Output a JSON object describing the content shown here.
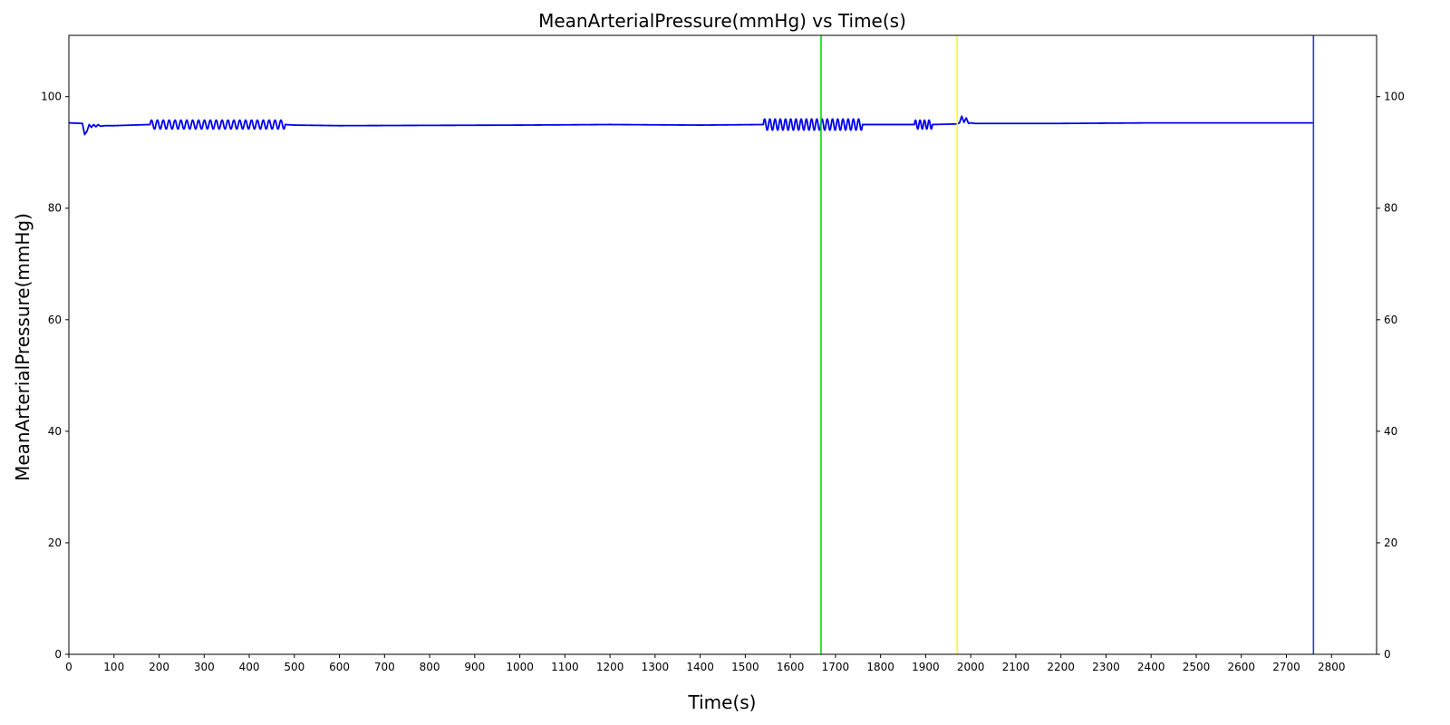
{
  "chart_data": {
    "type": "line",
    "title": "MeanArterialPressure(mmHg) vs Time(s)",
    "xlabel": "Time(s)",
    "ylabel": "MeanArterialPressure(mmHg)",
    "xlim": [
      0,
      2900
    ],
    "ylim": [
      0,
      111
    ],
    "x_ticks": [
      0,
      100,
      200,
      300,
      400,
      500,
      600,
      700,
      800,
      900,
      1000,
      1100,
      1200,
      1300,
      1400,
      1500,
      1600,
      1700,
      1800,
      1900,
      2000,
      2100,
      2200,
      2300,
      2400,
      2500,
      2600,
      2700,
      2800
    ],
    "y_ticks": [
      0,
      20,
      40,
      60,
      80,
      100
    ],
    "y_ticks_right": true,
    "grid": false,
    "series": [
      {
        "color": "#0000ee",
        "x": [
          0,
          30,
          35,
          40,
          45,
          50,
          55,
          60,
          65,
          70,
          80,
          100,
          180,
          480,
          500,
          600,
          1000,
          1200,
          1400,
          1540,
          1760,
          1780,
          1870,
          1910,
          1970,
          1975,
          1980,
          1985,
          1990,
          1995,
          2000,
          2010,
          2020,
          2200,
          2400,
          2600,
          2760
        ],
        "y": [
          95.3,
          95.2,
          93.2,
          93.8,
          95.0,
          94.5,
          95.0,
          94.6,
          95.0,
          94.7,
          94.8,
          94.8,
          95.0,
          95.0,
          94.9,
          94.8,
          94.9,
          95.0,
          94.9,
          95.0,
          95.0,
          95.0,
          95.0,
          95.0,
          95.1,
          95.3,
          96.5,
          95.4,
          96.2,
          95.2,
          95.3,
          95.2,
          95.2,
          95.2,
          95.3,
          95.3,
          95.3
        ],
        "oscillations": [
          {
            "x_start": 180,
            "x_end": 480,
            "amplitude": 0.8,
            "cycles": 23
          },
          {
            "x_start": 1540,
            "x_end": 1760,
            "amplitude": 1.0,
            "cycles": 19
          },
          {
            "x_start": 1875,
            "x_end": 1915,
            "amplitude": 0.8,
            "cycles": 4
          }
        ]
      }
    ],
    "vertical_lines": [
      {
        "x": 1668,
        "color": "#00dd00"
      },
      {
        "x": 1970,
        "color": "#ffff00"
      },
      {
        "x": 2760,
        "color": "#3333dd"
      }
    ]
  }
}
